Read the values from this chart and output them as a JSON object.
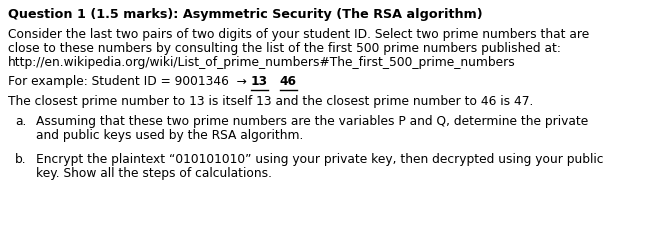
{
  "bg_color": "#ffffff",
  "title_text": "Question 1 (1.5 marks): Asymmetric Security (The RSA algorithm)",
  "para1_line1": "Consider the last two pairs of two digits of your student ID. Select two prime numbers that are",
  "para1_line2": "close to these numbers by consulting the list of the first 500 prime numbers published at:",
  "para1_line3": "http://en.wikipedia.org/wiki/List_of_prime_numbers#The_first_500_prime_numbers",
  "para3_text": "The closest prime number to 13 is itself 13 and the closest prime number to 46 is 47.",
  "item_a_label": "a.",
  "item_a_line1": "Assuming that these two prime numbers are the variables P and Q, determine the private",
  "item_a_line2": "and public keys used by the RSA algorithm.",
  "item_b_label": "b.",
  "item_b_line1": "Encrypt the plaintext “010101010” using your private key, then decrypted using your public",
  "item_b_line2": "key. Show all the steps of calculations.",
  "prefix_text": "For example: Student ID = 9001346  → ",
  "text_13": "13",
  "text_46": "46",
  "font_family": "DejaVu Sans",
  "title_fontsize": 9.2,
  "body_fontsize": 8.8,
  "text_color": "#000000",
  "bg_color_hex": "#ffffff"
}
